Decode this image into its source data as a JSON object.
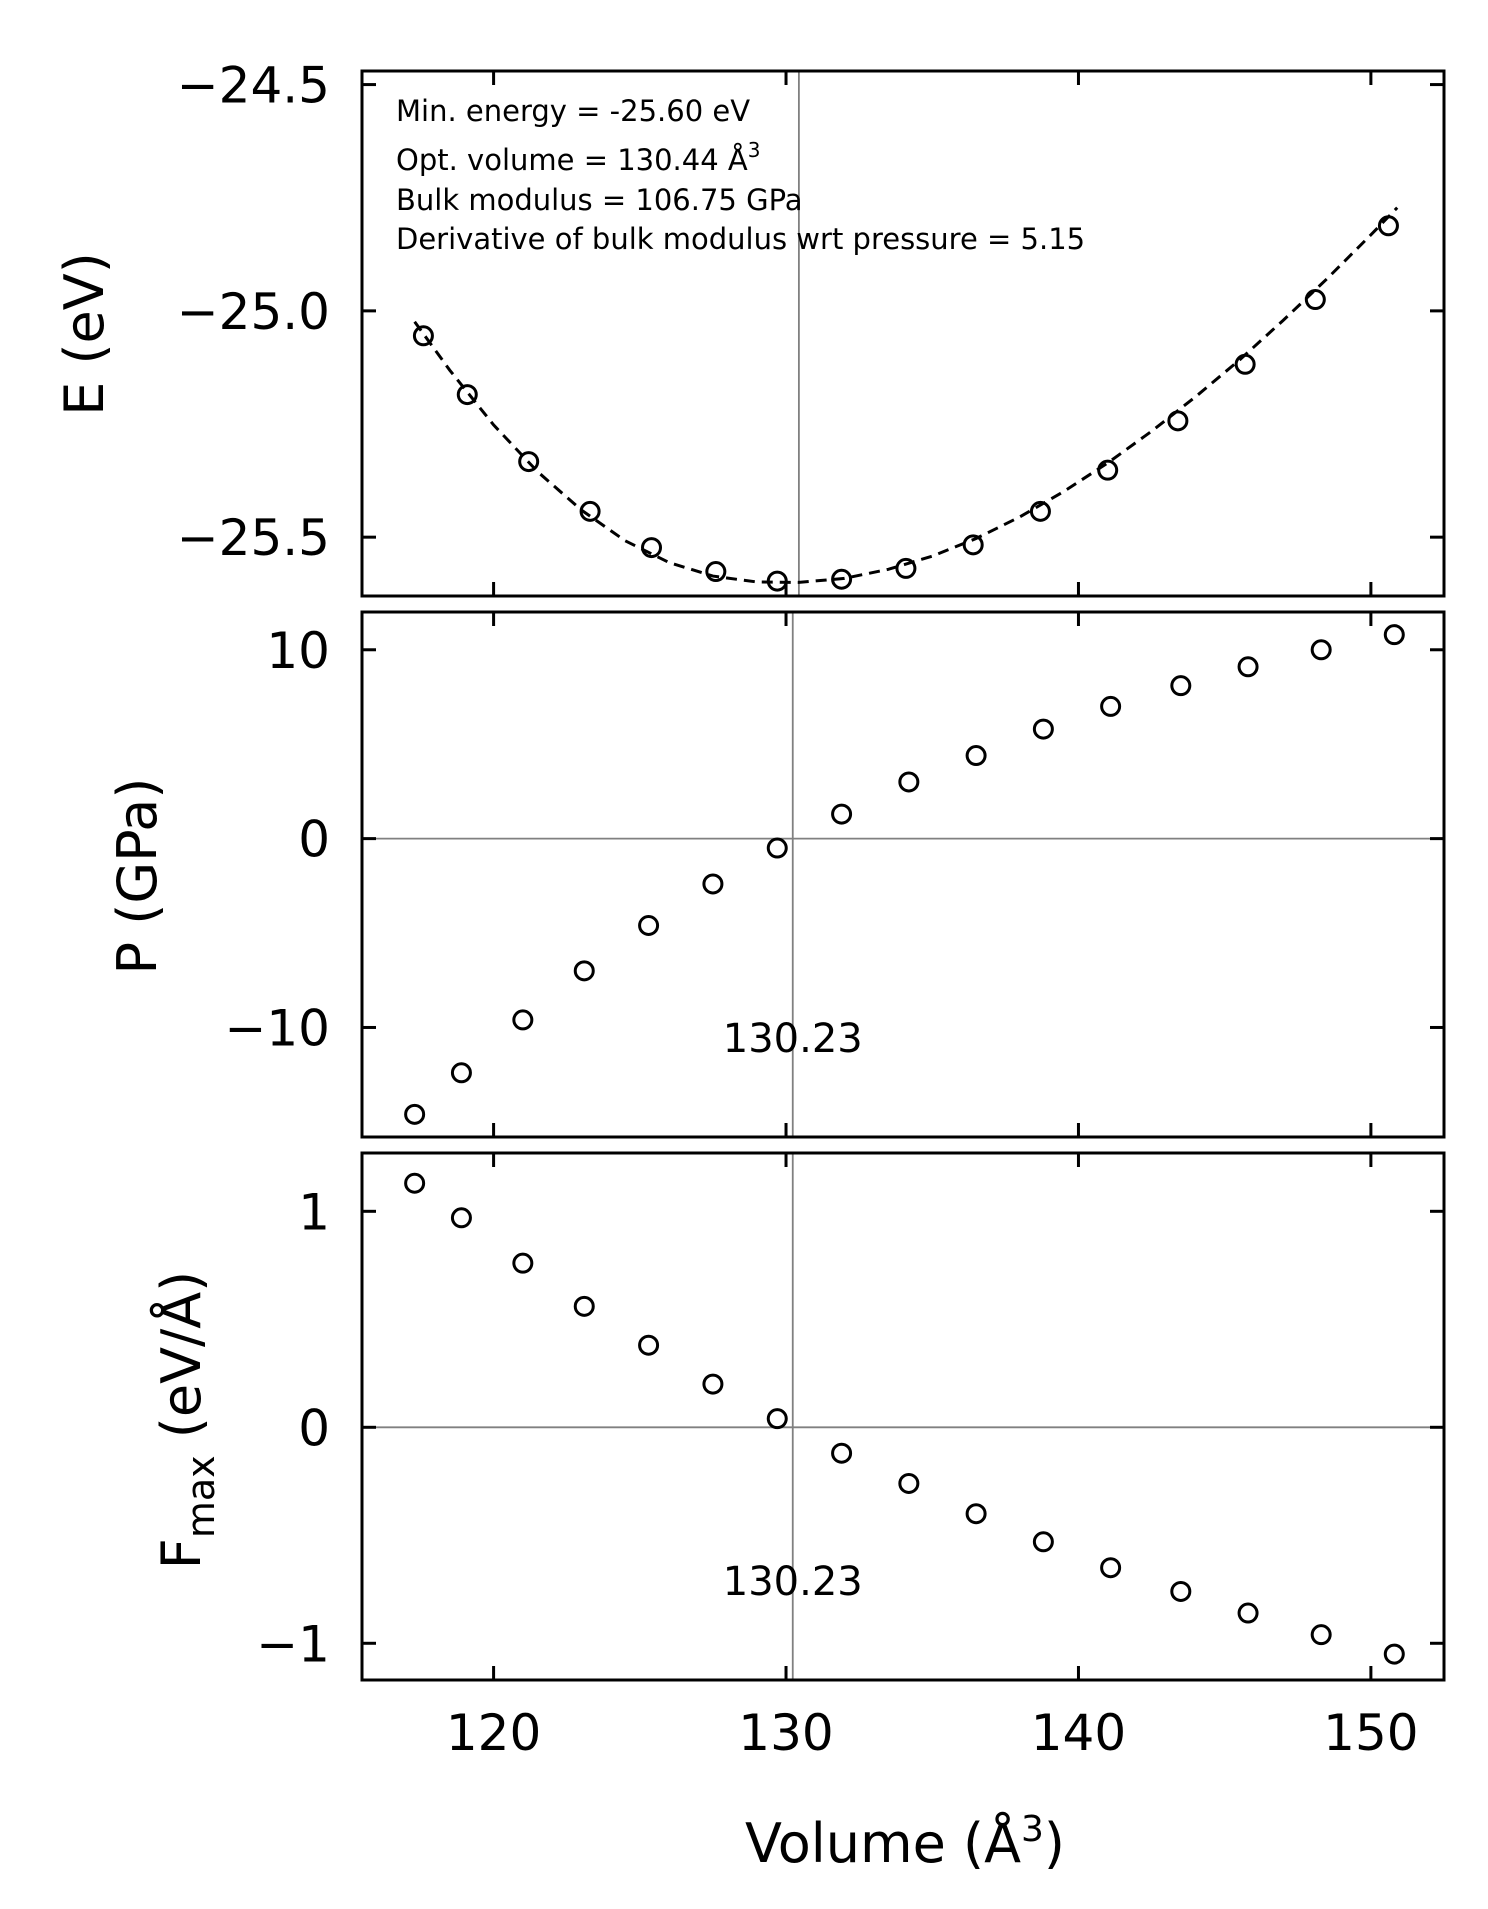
{
  "chart_data": [
    {
      "type": "scatter",
      "panel": "energy",
      "ylabel": "E (eV)",
      "ylim": [
        -25.63,
        -24.47
      ],
      "yticks": [
        -25.5,
        -25.0,
        -24.5
      ],
      "ytick_labels": [
        "−25.5",
        "−25.0",
        "−24.5"
      ],
      "xlim": [
        115.5,
        152.5
      ],
      "xticks": [
        120,
        130,
        140,
        150
      ],
      "reference_vline": 130.44,
      "fit": "dashed",
      "annotations": [
        "Min. energy = -25.60 eV",
        "Opt. volume = 130.44 Å",
        "Bulk modulus = 106.75 GPa",
        "Derivative of bulk modulus wrt pressure = 5.15"
      ],
      "annotation_superscript": "3",
      "x": [
        117.6,
        119.1,
        121.2,
        123.3,
        125.4,
        127.6,
        129.7,
        131.9,
        134.1,
        136.4,
        138.7,
        141.0,
        143.4,
        145.7,
        148.1,
        150.6
      ],
      "y": [
        -25.055,
        -25.185,
        -25.333,
        -25.443,
        -25.523,
        -25.576,
        -25.597,
        -25.593,
        -25.569,
        -25.517,
        -25.443,
        -25.352,
        -25.243,
        -25.118,
        -24.975,
        -24.812
      ],
      "fit_x": [
        117.3,
        118.5,
        120.0,
        121.5,
        123.0,
        124.5,
        126.0,
        127.5,
        129.0,
        130.44,
        132.0,
        133.5,
        135.0,
        136.5,
        138.0,
        139.5,
        141.0,
        142.5,
        144.0,
        145.5,
        147.0,
        148.5,
        150.0,
        150.9
      ],
      "fit_y": [
        -25.024,
        -25.131,
        -25.252,
        -25.355,
        -25.44,
        -25.508,
        -25.556,
        -25.586,
        -25.599,
        -25.6,
        -25.591,
        -25.571,
        -25.542,
        -25.503,
        -25.455,
        -25.399,
        -25.336,
        -25.266,
        -25.19,
        -25.109,
        -25.021,
        -24.929,
        -24.832,
        -24.772
      ]
    },
    {
      "type": "scatter",
      "panel": "pressure",
      "ylabel": "P (GPa)",
      "ylim": [
        -15.8,
        12.0
      ],
      "yticks": [
        -10,
        0,
        10
      ],
      "ytick_labels": [
        "−10",
        "0",
        "10"
      ],
      "xlim": [
        115.5,
        152.5
      ],
      "xticks": [
        120,
        130,
        140,
        150
      ],
      "reference_vline": 130.23,
      "reference_hline": 0,
      "vline_label": "130.23",
      "x": [
        117.3,
        118.9,
        121.0,
        123.1,
        125.3,
        127.5,
        129.7,
        131.9,
        134.2,
        136.5,
        138.8,
        141.1,
        143.5,
        145.8,
        148.3,
        150.8
      ],
      "y": [
        -14.6,
        -12.4,
        -9.6,
        -7.0,
        -4.6,
        -2.4,
        -0.5,
        1.3,
        3.0,
        4.4,
        5.8,
        7.0,
        8.1,
        9.1,
        10.0,
        10.8
      ]
    },
    {
      "type": "scatter",
      "panel": "force",
      "ylabel_main": "F",
      "ylabel_sub": "max",
      "ylabel_rest": " (eV/Å)",
      "ylim": [
        -1.17,
        1.27
      ],
      "yticks": [
        -1,
        0,
        1
      ],
      "ytick_labels": [
        "−1",
        "0",
        "1"
      ],
      "xlim": [
        115.5,
        152.5
      ],
      "xticks": [
        120,
        130,
        140,
        150
      ],
      "xtick_labels": [
        "120",
        "130",
        "140",
        "150"
      ],
      "xlabel": "Volume (Å",
      "xlabel_sup": "3",
      "xlabel_close": ")",
      "reference_vline": 130.23,
      "reference_hline": 0,
      "vline_label": "130.23",
      "x": [
        117.3,
        118.9,
        121.0,
        123.1,
        125.3,
        127.5,
        129.7,
        131.9,
        134.2,
        136.5,
        138.8,
        141.1,
        143.5,
        145.8,
        148.3,
        150.8
      ],
      "y": [
        1.13,
        0.97,
        0.76,
        0.56,
        0.38,
        0.2,
        0.04,
        -0.12,
        -0.26,
        -0.4,
        -0.53,
        -0.65,
        -0.76,
        -0.86,
        -0.96,
        -1.05
      ]
    }
  ]
}
